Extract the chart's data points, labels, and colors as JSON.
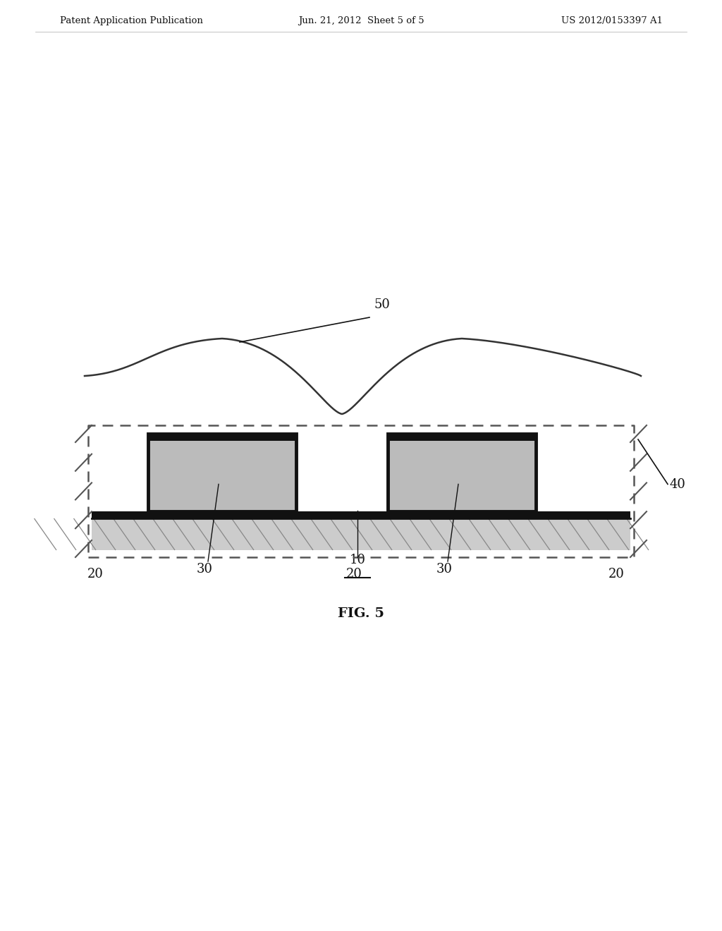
{
  "bg_color": "#ffffff",
  "header_left": "Patent Application Publication",
  "header_mid": "Jun. 21, 2012  Sheet 5 of 5",
  "header_right": "US 2012/0153397 A1",
  "fig_label": "FIG. 5",
  "substrate_color": "#cccccc",
  "fin_fill_color": "#bbbbbb",
  "silicide_color": "#111111",
  "dashed_color": "#666666",
  "curve_color": "#333333",
  "text_color": "#111111"
}
